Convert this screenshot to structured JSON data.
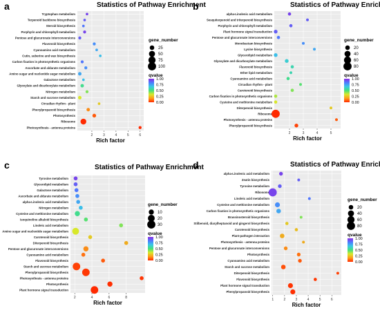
{
  "figure": {
    "panel_letters": [
      "a",
      "b",
      "c",
      "d"
    ]
  },
  "chart_data": [
    {
      "panel": "a",
      "type": "scatter",
      "title": "Statistics of Pathway Enrichment",
      "xlabel": "Rich factor",
      "ylabel": "",
      "xlim": [
        0.8,
        6.3
      ],
      "xticks": [
        2,
        3,
        4,
        5,
        6
      ],
      "size_legend": {
        "title": "gene_number",
        "values": [
          25,
          50,
          75,
          100
        ]
      },
      "color_legend": {
        "title": "qvalue",
        "ticks": [
          "1.00",
          "0.75",
          "0.50",
          "0.25",
          "0.00"
        ],
        "colors": [
          "#8a2be2",
          "#4d7cff",
          "#39c8e6",
          "#45e07a",
          "#d8e82a",
          "#ff9d1a",
          "#ff2a00"
        ]
      },
      "categories": [
        "Tryptophan metabolism",
        "Terpenoid backbone biosynthesis",
        "Steroid biosynthesis",
        "Porphyrin and chlorophyll metabolism",
        "Pentose and glucuronate interconversions",
        "Flavonoid biosynthesis",
        "Cyanoamino acid metabolism",
        "Cutin, suberine and wax biosynthesis",
        "Carbon fixation in photosynthetic organisms",
        "Ascorbate and aldarate metabolism",
        "Amino sugar and nucleotide sugar metabolism",
        "Galactose metabolism",
        "Glyoxylate and dicarboxylate metabolism",
        "Nitrogen metabolism",
        "Starch and sucrose metabolism",
        "Circadian rhythm - plant",
        "Phenylpropanoid biosynthesis",
        "Photosynthesis",
        "Ribosome",
        "Photosynthesis - antenna proteins"
      ],
      "x": [
        1.6,
        1.4,
        1.3,
        1.4,
        1.0,
        2.2,
        2.4,
        2.7,
        1.2,
        1.5,
        1.0,
        1.3,
        1.2,
        1.6,
        1.0,
        2.6,
        1.7,
        2.2,
        1.3,
        6.0
      ],
      "sizes": [
        5,
        5,
        5,
        8,
        8,
        8,
        5,
        5,
        8,
        8,
        12,
        5,
        12,
        8,
        12,
        5,
        12,
        15,
        45,
        8
      ],
      "qvalues": [
        0.95,
        0.9,
        0.85,
        0.95,
        0.9,
        0.8,
        0.75,
        0.7,
        0.85,
        0.8,
        0.75,
        0.7,
        0.55,
        0.45,
        0.35,
        0.3,
        0.2,
        0.1,
        0.0,
        0.0
      ]
    },
    {
      "panel": "b",
      "type": "scatter",
      "title": "Statistics of Pathway Enrichment",
      "xlabel": "Rich factor",
      "ylabel": "",
      "xlim": [
        0.9,
        5.7
      ],
      "xticks": [
        2,
        3,
        4,
        5
      ],
      "size_legend": {
        "title": "gene_number",
        "values": [
          20,
          40,
          60,
          80
        ]
      },
      "color_legend": {
        "title": "qvalue",
        "ticks": [
          "1.00",
          "0.75",
          "0.50",
          "0.25",
          "0.00"
        ],
        "colors": [
          "#8a2be2",
          "#4d7cff",
          "#39c8e6",
          "#45e07a",
          "#d8e82a",
          "#ff9d1a",
          "#ff2a00"
        ]
      },
      "categories": [
        "alpha-Linolenic acid metabolism",
        "Sesquiterpenoid and triterpenoid biosynthesis",
        "Porphyrin and chlorophyll metabolism",
        "Plant hormone signal transduction",
        "Pentose and glucuronate interconversions",
        "Monobactam biosynthesis",
        "Lysine biosynthesis",
        "Glycerolipid metabolism",
        "Glyoxylate and dicarboxylate metabolism",
        "Flavonoid biosynthesis",
        "Ether lipid metabolism",
        "Cyanoamino acid metabolism",
        "Circadian rhythm - plant",
        "Carotenoid biosynthesis",
        "Carbon fixation in photosynthetic organisms",
        "Cysteine and methionine metabolism",
        "Diterpenoid biosynthesis",
        "Ribosome",
        "Photosynthesis - antenna proteins",
        "Phenylpropanoid biosynthesis"
      ],
      "x": [
        2.0,
        3.3,
        2.1,
        1.0,
        1.2,
        3.0,
        3.8,
        1.0,
        1.8,
        2.2,
        2.1,
        1.9,
        2.8,
        2.2,
        1.0,
        1.0,
        5.0,
        1.0,
        5.4,
        2.5
      ],
      "sizes": [
        8,
        5,
        8,
        12,
        8,
        5,
        5,
        12,
        12,
        8,
        5,
        8,
        5,
        8,
        8,
        8,
        5,
        80,
        5,
        12
      ],
      "qvalues": [
        0.95,
        0.9,
        0.9,
        0.9,
        0.85,
        0.8,
        0.75,
        0.7,
        0.65,
        0.6,
        0.6,
        0.55,
        0.5,
        0.45,
        0.4,
        0.35,
        0.3,
        0.0,
        0.1,
        0.05
      ]
    },
    {
      "panel": "c",
      "type": "scatter",
      "title": "Statistics of Pathway Enrichment",
      "xlabel": "Rich factor",
      "ylabel": "",
      "xlim": [
        1.5,
        10.2
      ],
      "xticks": [
        2,
        4,
        6,
        8
      ],
      "size_legend": {
        "title": "gene_number",
        "values": [
          10,
          20,
          30
        ]
      },
      "color_legend": {
        "title": "qvalue",
        "ticks": [
          "1.00",
          "0.75",
          "0.50",
          "0.25",
          "0.00"
        ],
        "colors": [
          "#8a2be2",
          "#4d7cff",
          "#39c8e6",
          "#45e07a",
          "#d8e82a",
          "#ff9d1a",
          "#ff2a00"
        ]
      },
      "categories": [
        "Tyrosine metabolism",
        "Glycerolipid metabolism",
        "Galactose metabolism",
        "Ascorbate and aldarate metabolism",
        "alpha-Linolenic acid metabolism",
        "Nitrogen metabolism",
        "Cysteine and methionine metabolism",
        "Isoquinoline alkaloid biosynthesis",
        "Linoleic acid metabolism",
        "Amino sugar and nucleotide sugar metabolism",
        "Carotenoid biosynthesis",
        "Diterpenoid biosynthesis",
        "Pentose and glucuronate interconversions",
        "Cyanoamino acid metabolism",
        "Flavonoid biosynthesis",
        "Starch and sucrose metabolism",
        "Phenylpropanoid biosynthesis",
        "Photosynthesis - antenna proteins",
        "Photosynthesis",
        "Plant hormone signal transduction"
      ],
      "x": [
        2.1,
        2.1,
        2.2,
        2.3,
        2.4,
        2.7,
        2.3,
        3.3,
        7.4,
        2.1,
        3.8,
        8.0,
        3.3,
        3.0,
        5.3,
        2.2,
        3.3,
        9.8,
        6.1,
        4.3
      ],
      "sizes": [
        5,
        5,
        5,
        5,
        5,
        5,
        10,
        5,
        5,
        20,
        5,
        5,
        10,
        5,
        5,
        25,
        25,
        5,
        10,
        25
      ],
      "qvalues": [
        0.95,
        0.9,
        0.85,
        0.8,
        0.75,
        0.7,
        0.55,
        0.5,
        0.45,
        0.35,
        0.3,
        0.25,
        0.2,
        0.15,
        0.1,
        0.05,
        0.03,
        0.02,
        0.01,
        0.0
      ]
    },
    {
      "panel": "d",
      "type": "scatter",
      "title": "Statistics of Pathway Enrichment",
      "xlabel": "Rich factor",
      "ylabel": "",
      "xlim": [
        0.9,
        6.8
      ],
      "xticks": [
        1,
        2,
        3,
        4,
        5,
        6
      ],
      "size_legend": {
        "title": "gene_number",
        "values": [
          20,
          40,
          60,
          80
        ]
      },
      "color_legend": {
        "title": "qvalue",
        "ticks": [
          "1.00",
          "0.75",
          "0.50",
          "0.25",
          "0.00"
        ],
        "colors": [
          "#8a2be2",
          "#4d7cff",
          "#39c8e6",
          "#45e07a",
          "#d8e82a",
          "#ff9d1a",
          "#ff2a00"
        ]
      },
      "categories": [
        "alpha-Linolenic acid metabolism",
        "Zeatin biosynthesis",
        "Tyrosine metabolism",
        "Ribosome",
        "Linoleic acid metabolism",
        "Cysteine and methionine metabolism",
        "Carbon fixation in photosynthetic organisms",
        "Brassinosteroid biosynthesis",
        "Stilbenoid, diarylheptanoid and gingerol biosynthesis",
        "Carotenoid biosynthesis",
        "Plant-pathogen interaction",
        "Photosynthesis - antenna proteins",
        "Pentose and glucuronate interconversions",
        "Photosynthesis",
        "Cyanoamino acid metabolism",
        "Starch and sucrose metabolism",
        "Diterpenoid biosynthesis",
        "Flavonoid biosynthesis",
        "Plant hormone signal transduction",
        "Phenylpropanoid biosynthesis"
      ],
      "x": [
        1.7,
        3.2,
        1.6,
        1.0,
        4.1,
        1.4,
        1.5,
        3.4,
        2.2,
        3.0,
        1.8,
        3.6,
        2.1,
        3.2,
        3.3,
        1.9,
        6.5,
        4.6,
        2.5,
        2.7
      ],
      "sizes": [
        12,
        5,
        12,
        80,
        5,
        25,
        20,
        5,
        8,
        8,
        20,
        5,
        12,
        12,
        12,
        20,
        5,
        8,
        25,
        25
      ],
      "qvalues": [
        0.95,
        0.9,
        0.9,
        0.95,
        0.85,
        0.8,
        0.75,
        0.45,
        0.3,
        0.28,
        0.25,
        0.25,
        0.2,
        0.15,
        0.1,
        0.08,
        0.05,
        0.03,
        0.02,
        0.01
      ]
    }
  ]
}
